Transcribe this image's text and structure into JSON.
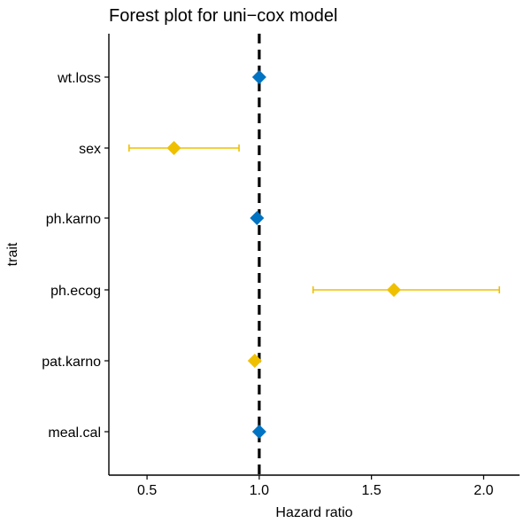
{
  "chart_data": {
    "type": "forest",
    "title": "Forest plot for uni−cox model",
    "xlabel": "Hazard ratio",
    "ylabel": "trait",
    "xlim": [
      0.33,
      2.16
    ],
    "xticks": [
      "0.5",
      "1.0",
      "1.5",
      "2.0"
    ],
    "xtick_values": [
      0.5,
      1.0,
      1.5,
      2.0
    ],
    "reference_line": 1.0,
    "grid": false,
    "categories": [
      "wt.loss",
      "sex",
      "ph.karno",
      "ph.ecog",
      "pat.karno",
      "meal.cal"
    ],
    "points": [
      {
        "trait": "wt.loss",
        "hr": 1.0,
        "lower": 1.0,
        "upper": 1.0,
        "significant": false
      },
      {
        "trait": "sex",
        "hr": 0.62,
        "lower": 0.42,
        "upper": 0.91,
        "significant": true
      },
      {
        "trait": "ph.karno",
        "hr": 0.99,
        "lower": 0.99,
        "upper": 0.99,
        "significant": false
      },
      {
        "trait": "ph.ecog",
        "hr": 1.6,
        "lower": 1.24,
        "upper": 2.07,
        "significant": true
      },
      {
        "trait": "pat.karno",
        "hr": 0.98,
        "lower": 0.98,
        "upper": 0.98,
        "significant": true
      },
      {
        "trait": "meal.cal",
        "hr": 1.0,
        "lower": 1.0,
        "upper": 1.0,
        "significant": false
      }
    ],
    "colors": {
      "significant": "#EFC000",
      "not_significant": "#0073C2",
      "reference": "#000000"
    }
  }
}
